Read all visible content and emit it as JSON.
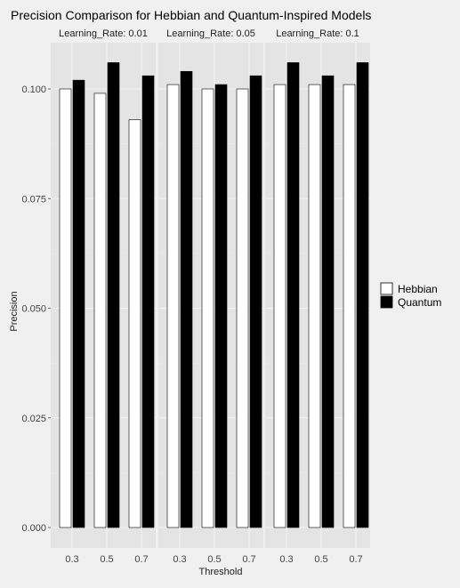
{
  "chart_data": {
    "type": "bar",
    "title": "Precision Comparison for Hebbian and Quantum-Inspired Models",
    "xlabel": "Threshold",
    "ylabel": "Precision",
    "ylim": [
      0,
      0.11
    ],
    "yticks": [
      "0.000",
      "0.025",
      "0.050",
      "0.075",
      "0.100"
    ],
    "grid": true,
    "legend_position": "right",
    "categories": [
      "0.3",
      "0.5",
      "0.7"
    ],
    "facets": [
      {
        "label": "Learning_Rate: 0.01",
        "series": [
          {
            "name": "Hebbian",
            "values": [
              0.1,
              0.099,
              0.093
            ]
          },
          {
            "name": "Quantum",
            "values": [
              0.102,
              0.106,
              0.103
            ]
          }
        ]
      },
      {
        "label": "Learning_Rate: 0.05",
        "series": [
          {
            "name": "Hebbian",
            "values": [
              0.101,
              0.1,
              0.1
            ]
          },
          {
            "name": "Quantum",
            "values": [
              0.104,
              0.101,
              0.103
            ]
          }
        ]
      },
      {
        "label": "Learning_Rate: 0.1",
        "series": [
          {
            "name": "Hebbian",
            "values": [
              0.101,
              0.101,
              0.101
            ]
          },
          {
            "name": "Quantum",
            "values": [
              0.106,
              0.103,
              0.106
            ]
          }
        ]
      }
    ],
    "legend": [
      {
        "name": "Hebbian",
        "color": "#ffffff"
      },
      {
        "name": "Quantum",
        "color": "#000000"
      }
    ]
  }
}
